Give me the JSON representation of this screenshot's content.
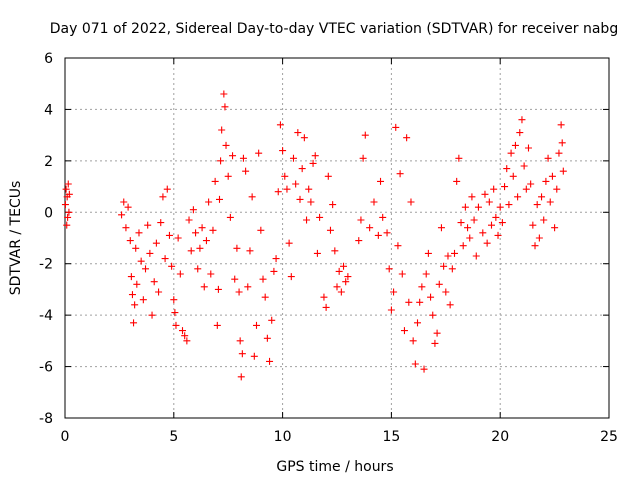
{
  "chart_data": {
    "type": "scatter",
    "title": "Day 071 of 2022, Sidereal Day-to-day VTEC variation (SDTVAR) for receiver nabg",
    "xlabel": "GPS time / hours",
    "ylabel": "SDTVAR / TECUs",
    "xlim": [
      0,
      25
    ],
    "ylim": [
      -8,
      6
    ],
    "xticks": [
      "0",
      "5",
      "10",
      "15",
      "20",
      "25"
    ],
    "yticks": [
      "-8",
      "-6",
      "-4",
      "-2",
      "0",
      "2",
      "4",
      "6"
    ],
    "grid": true,
    "marker": "+",
    "marker_color": "#ff0000",
    "series": [
      {
        "name": "SDTVAR",
        "points": [
          [
            0.02,
            0.3
          ],
          [
            0.05,
            0.9
          ],
          [
            0.08,
            -0.5
          ],
          [
            0.1,
            0.6
          ],
          [
            0.12,
            -0.2
          ],
          [
            0.15,
            1.1
          ],
          [
            0.18,
            0.0
          ],
          [
            0.2,
            0.7
          ],
          [
            2.6,
            -0.1
          ],
          [
            2.7,
            0.4
          ],
          [
            2.8,
            -0.6
          ],
          [
            2.9,
            0.2
          ],
          [
            3.0,
            -1.1
          ],
          [
            3.05,
            -2.5
          ],
          [
            3.1,
            -3.2
          ],
          [
            3.15,
            -4.3
          ],
          [
            3.2,
            -3.6
          ],
          [
            3.25,
            -1.4
          ],
          [
            3.3,
            -2.8
          ],
          [
            3.4,
            -0.8
          ],
          [
            3.5,
            -1.9
          ],
          [
            3.6,
            -3.4
          ],
          [
            3.7,
            -2.2
          ],
          [
            3.8,
            -0.5
          ],
          [
            3.9,
            -1.6
          ],
          [
            4.0,
            -4.0
          ],
          [
            4.1,
            -2.7
          ],
          [
            4.2,
            -1.2
          ],
          [
            4.3,
            -3.1
          ],
          [
            4.4,
            -0.4
          ],
          [
            4.5,
            0.6
          ],
          [
            4.6,
            -1.8
          ],
          [
            4.7,
            0.9
          ],
          [
            4.8,
            -0.9
          ],
          [
            4.9,
            -2.1
          ],
          [
            5.0,
            -3.4
          ],
          [
            5.05,
            -3.9
          ],
          [
            5.1,
            -4.4
          ],
          [
            5.2,
            -1.0
          ],
          [
            5.3,
            -2.4
          ],
          [
            5.4,
            -4.6
          ],
          [
            5.5,
            -4.8
          ],
          [
            5.6,
            -5.0
          ],
          [
            5.7,
            -0.3
          ],
          [
            5.8,
            -1.5
          ],
          [
            5.9,
            0.1
          ],
          [
            6.0,
            -0.8
          ],
          [
            6.1,
            -2.2
          ],
          [
            6.2,
            -1.4
          ],
          [
            6.3,
            -0.6
          ],
          [
            6.4,
            -2.9
          ],
          [
            6.5,
            -1.1
          ],
          [
            6.6,
            0.4
          ],
          [
            6.7,
            -2.4
          ],
          [
            6.8,
            -0.7
          ],
          [
            6.9,
            1.2
          ],
          [
            7.0,
            -4.4
          ],
          [
            7.05,
            -3.0
          ],
          [
            7.1,
            0.5
          ],
          [
            7.15,
            2.0
          ],
          [
            7.2,
            3.2
          ],
          [
            7.3,
            4.6
          ],
          [
            7.35,
            4.1
          ],
          [
            7.4,
            2.6
          ],
          [
            7.5,
            1.4
          ],
          [
            7.6,
            -0.2
          ],
          [
            7.7,
            2.2
          ],
          [
            7.8,
            -2.6
          ],
          [
            7.9,
            -1.4
          ],
          [
            8.0,
            -3.1
          ],
          [
            8.05,
            -5.0
          ],
          [
            8.1,
            -6.4
          ],
          [
            8.15,
            -5.5
          ],
          [
            8.2,
            2.1
          ],
          [
            8.3,
            1.6
          ],
          [
            8.4,
            -2.9
          ],
          [
            8.5,
            -1.5
          ],
          [
            8.6,
            0.6
          ],
          [
            8.7,
            -5.6
          ],
          [
            8.8,
            -4.4
          ],
          [
            8.9,
            2.3
          ],
          [
            9.0,
            -0.7
          ],
          [
            9.1,
            -2.6
          ],
          [
            9.2,
            -3.3
          ],
          [
            9.3,
            -4.9
          ],
          [
            9.4,
            -5.8
          ],
          [
            9.5,
            -4.2
          ],
          [
            9.6,
            -2.3
          ],
          [
            9.7,
            -1.8
          ],
          [
            9.8,
            0.8
          ],
          [
            9.9,
            3.4
          ],
          [
            10.0,
            2.4
          ],
          [
            10.1,
            1.4
          ],
          [
            10.2,
            0.9
          ],
          [
            10.3,
            -1.2
          ],
          [
            10.4,
            -2.5
          ],
          [
            10.5,
            2.1
          ],
          [
            10.6,
            1.1
          ],
          [
            10.7,
            3.1
          ],
          [
            10.8,
            0.5
          ],
          [
            10.9,
            1.7
          ],
          [
            11.0,
            2.9
          ],
          [
            11.1,
            -0.3
          ],
          [
            11.2,
            0.9
          ],
          [
            11.3,
            0.4
          ],
          [
            11.4,
            1.9
          ],
          [
            11.5,
            2.2
          ],
          [
            11.6,
            -1.6
          ],
          [
            11.7,
            -0.2
          ],
          [
            11.9,
            -3.3
          ],
          [
            12.0,
            -3.7
          ],
          [
            12.1,
            1.4
          ],
          [
            12.2,
            -0.7
          ],
          [
            12.3,
            0.3
          ],
          [
            12.4,
            -1.5
          ],
          [
            12.5,
            -2.9
          ],
          [
            12.6,
            -2.3
          ],
          [
            12.7,
            -3.1
          ],
          [
            12.8,
            -2.1
          ],
          [
            12.9,
            -2.7
          ],
          [
            13.0,
            -2.5
          ],
          [
            13.5,
            -1.1
          ],
          [
            13.6,
            -0.3
          ],
          [
            13.7,
            2.1
          ],
          [
            13.8,
            3.0
          ],
          [
            14.0,
            -0.6
          ],
          [
            14.2,
            0.4
          ],
          [
            14.4,
            -0.9
          ],
          [
            14.5,
            1.2
          ],
          [
            14.6,
            -0.2
          ],
          [
            14.8,
            -0.8
          ],
          [
            14.9,
            -2.2
          ],
          [
            15.0,
            -3.8
          ],
          [
            15.1,
            -3.1
          ],
          [
            15.2,
            3.3
          ],
          [
            15.3,
            -1.3
          ],
          [
            15.4,
            1.5
          ],
          [
            15.5,
            -2.4
          ],
          [
            15.6,
            -4.6
          ],
          [
            15.7,
            2.9
          ],
          [
            15.8,
            -3.5
          ],
          [
            15.9,
            0.4
          ],
          [
            16.0,
            -5.0
          ],
          [
            16.1,
            -5.9
          ],
          [
            16.2,
            -4.3
          ],
          [
            16.3,
            -3.5
          ],
          [
            16.4,
            -2.9
          ],
          [
            16.5,
            -6.1
          ],
          [
            16.6,
            -2.4
          ],
          [
            16.7,
            -1.6
          ],
          [
            16.8,
            -3.3
          ],
          [
            16.9,
            -4.0
          ],
          [
            17.0,
            -5.1
          ],
          [
            17.1,
            -4.7
          ],
          [
            17.2,
            -2.8
          ],
          [
            17.3,
            -0.6
          ],
          [
            17.4,
            -2.1
          ],
          [
            17.5,
            -3.1
          ],
          [
            17.6,
            -1.7
          ],
          [
            17.7,
            -3.6
          ],
          [
            17.8,
            -2.2
          ],
          [
            17.9,
            -1.6
          ],
          [
            18.0,
            1.2
          ],
          [
            18.1,
            2.1
          ],
          [
            18.2,
            -0.4
          ],
          [
            18.3,
            -1.3
          ],
          [
            18.4,
            0.2
          ],
          [
            18.5,
            -0.6
          ],
          [
            18.6,
            -1.0
          ],
          [
            18.7,
            0.6
          ],
          [
            18.8,
            -0.3
          ],
          [
            18.9,
            -1.7
          ],
          [
            19.0,
            0.2
          ],
          [
            19.2,
            -0.8
          ],
          [
            19.3,
            0.7
          ],
          [
            19.4,
            -1.2
          ],
          [
            19.5,
            0.4
          ],
          [
            19.6,
            -0.5
          ],
          [
            19.7,
            0.9
          ],
          [
            19.8,
            -0.2
          ],
          [
            19.9,
            -0.9
          ],
          [
            20.0,
            0.2
          ],
          [
            20.1,
            -0.4
          ],
          [
            20.2,
            1.0
          ],
          [
            20.3,
            1.7
          ],
          [
            20.4,
            0.3
          ],
          [
            20.5,
            2.3
          ],
          [
            20.6,
            1.4
          ],
          [
            20.7,
            2.6
          ],
          [
            20.8,
            0.6
          ],
          [
            20.9,
            3.1
          ],
          [
            21.0,
            3.6
          ],
          [
            21.1,
            1.8
          ],
          [
            21.2,
            0.9
          ],
          [
            21.3,
            2.5
          ],
          [
            21.4,
            1.1
          ],
          [
            21.5,
            -0.5
          ],
          [
            21.6,
            -1.3
          ],
          [
            21.7,
            0.3
          ],
          [
            21.8,
            -1.0
          ],
          [
            21.9,
            0.6
          ],
          [
            22.0,
            -0.3
          ],
          [
            22.1,
            1.2
          ],
          [
            22.2,
            2.1
          ],
          [
            22.3,
            0.4
          ],
          [
            22.4,
            1.4
          ],
          [
            22.5,
            -0.6
          ],
          [
            22.6,
            0.9
          ],
          [
            22.7,
            2.3
          ],
          [
            22.8,
            3.4
          ],
          [
            22.85,
            2.7
          ],
          [
            22.9,
            1.6
          ]
        ]
      }
    ]
  }
}
